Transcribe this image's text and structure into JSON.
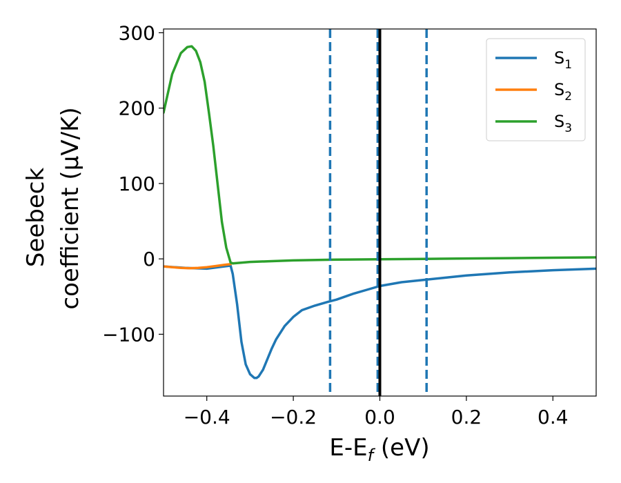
{
  "chart_data": {
    "type": "line",
    "xlabel": "E-E",
    "xlabel_sub": "f",
    "xlabel_unit": " (eV)",
    "ylabel_line1": "Seebeck",
    "ylabel_line2": "coefficient  (μV/K)",
    "xlim": [
      -0.5,
      0.5
    ],
    "ylim": [
      -182,
      305
    ],
    "xticks": [
      -0.4,
      -0.2,
      0.0,
      0.2,
      0.4
    ],
    "xtick_labels": [
      "−0.4",
      "−0.2",
      "0.0",
      "0.2",
      "0.4"
    ],
    "yticks": [
      -100,
      0,
      100,
      200,
      300
    ],
    "ytick_labels": [
      "−100",
      "0",
      "100",
      "200",
      "300"
    ],
    "grid": false,
    "legend_position": "top-right",
    "vlines": [
      {
        "x": -0.115,
        "style": "dashed",
        "color": "#1f77b4"
      },
      {
        "x": -0.005,
        "style": "dashed",
        "color": "#1f77b4"
      },
      {
        "x": 0.0,
        "style": "solid",
        "color": "#000000"
      },
      {
        "x": 0.108,
        "style": "dashed",
        "color": "#1f77b4"
      }
    ],
    "series": [
      {
        "name": "S",
        "sub": "1",
        "color": "#1f77b4",
        "x": [
          -0.5,
          -0.45,
          -0.4,
          -0.36,
          -0.345,
          -0.34,
          -0.33,
          -0.32,
          -0.31,
          -0.3,
          -0.29,
          -0.285,
          -0.28,
          -0.27,
          -0.26,
          -0.25,
          -0.24,
          -0.22,
          -0.2,
          -0.18,
          -0.15,
          -0.12,
          -0.1,
          -0.06,
          -0.03,
          0.0,
          0.05,
          0.1,
          0.15,
          0.2,
          0.3,
          0.4,
          0.5
        ],
        "y": [
          -10,
          -12,
          -13,
          -10,
          -9,
          -20,
          -60,
          -110,
          -140,
          -153,
          -158,
          -158,
          -156,
          -147,
          -133,
          -119,
          -107,
          -89,
          -77,
          -68,
          -62,
          -57,
          -54,
          -46,
          -41,
          -36,
          -31,
          -28,
          -25,
          -22,
          -18,
          -15,
          -13
        ]
      },
      {
        "name": "S",
        "sub": "2",
        "color": "#ff7f0e",
        "x": [
          -0.5,
          -0.48,
          -0.46,
          -0.44,
          -0.42,
          -0.4,
          -0.38,
          -0.36,
          -0.345
        ],
        "y": [
          -10,
          -11,
          -12,
          -12.5,
          -12,
          -11,
          -9.5,
          -8,
          -7
        ]
      },
      {
        "name": "S",
        "sub": "3",
        "color": "#2ca02c",
        "x": [
          -0.5,
          -0.48,
          -0.46,
          -0.445,
          -0.435,
          -0.425,
          -0.415,
          -0.405,
          -0.395,
          -0.385,
          -0.375,
          -0.365,
          -0.355,
          -0.345,
          -0.34,
          -0.3,
          -0.25,
          -0.2,
          -0.1,
          0.0,
          0.1,
          0.2,
          0.3,
          0.4,
          0.5
        ],
        "y": [
          194,
          245,
          273,
          281,
          282,
          276,
          261,
          235,
          194,
          150,
          99,
          49,
          15,
          -5,
          -6,
          -4,
          -3,
          -2,
          -1,
          -0.5,
          0,
          0.5,
          1,
          1.5,
          2
        ]
      }
    ]
  }
}
